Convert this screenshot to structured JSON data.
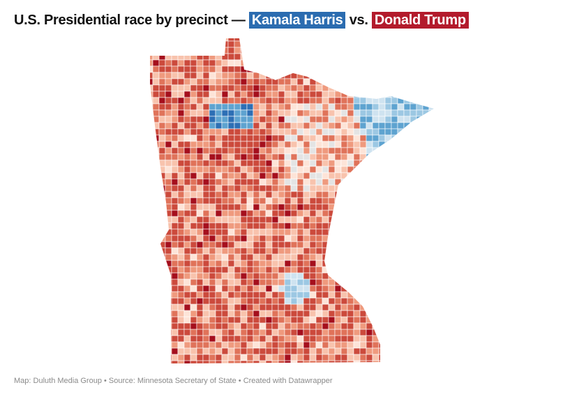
{
  "title": {
    "prefix": "U.S. Presidential race by precinct —",
    "candidate_a": "Kamala Harris",
    "separator": "vs.",
    "candidate_b": "Donald Trump"
  },
  "colors": {
    "harris": "#2b6cb0",
    "trump": "#b31b2c",
    "scale": [
      "#a50f1d",
      "#cc4a3c",
      "#e0735a",
      "#ef9a7e",
      "#f8c3ad",
      "#fde4d8",
      "#e4e4e4",
      "#cfe3f0",
      "#9cc8e3",
      "#5ea3d0",
      "#2d6fb5"
    ]
  },
  "footer": "Map: Duluth Media Group • Source: Minnesota Secretary of State • Created with Datawrapper"
}
